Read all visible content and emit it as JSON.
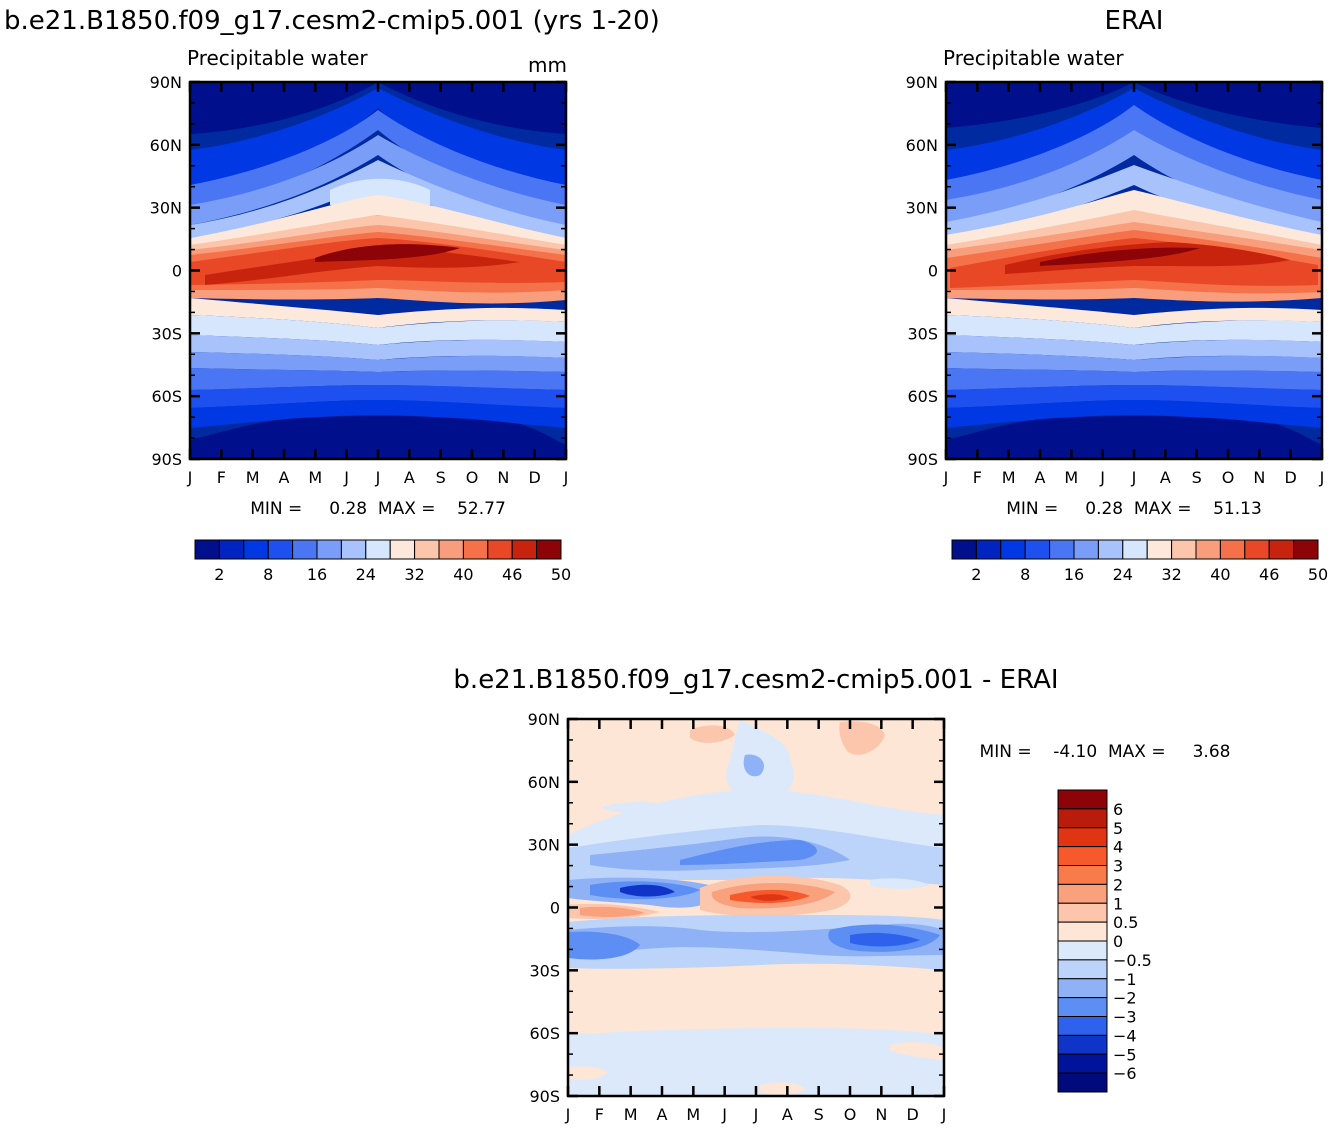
{
  "chart_data": [
    {
      "type": "heatmap",
      "title": "b.e21.B1850.f09_g17.cesm2-cmip5.001 (yrs 1-20)",
      "subtitle_left": "Precipitable water",
      "subtitle_right": "mm",
      "x_ticks": [
        "J",
        "F",
        "M",
        "A",
        "M",
        "J",
        "J",
        "A",
        "S",
        "O",
        "N",
        "D",
        "J"
      ],
      "y_ticks": [
        "90N",
        "60N",
        "30N",
        "0",
        "30S",
        "60S",
        "90S"
      ],
      "stats": "MIN =     0.28  MAX =    52.77",
      "colorbar": {
        "orientation": "horizontal",
        "levels": [
          "2",
          "8",
          "16",
          "24",
          "32",
          "40",
          "46",
          "50"
        ],
        "colors": [
          "#000f8c",
          "#0024c0",
          "#0038e4",
          "#1e50f0",
          "#4a76f4",
          "#7a9ef8",
          "#a8c2fb",
          "#d6e6fd",
          "#fde9dc",
          "#fbc6ac",
          "#f89e7c",
          "#f5714a",
          "#e84826",
          "#c8240d",
          "#8c0407"
        ]
      }
    },
    {
      "type": "heatmap",
      "title": "ERAI",
      "subtitle_left": "Precipitable water",
      "x_ticks": [
        "J",
        "F",
        "M",
        "A",
        "M",
        "J",
        "J",
        "A",
        "S",
        "O",
        "N",
        "D",
        "J"
      ],
      "y_ticks": [
        "90N",
        "60N",
        "30N",
        "0",
        "30S",
        "60S",
        "90S"
      ],
      "stats": "MIN =     0.28  MAX =    51.13",
      "colorbar": {
        "orientation": "horizontal",
        "levels": [
          "2",
          "8",
          "16",
          "24",
          "32",
          "40",
          "46",
          "50"
        ],
        "colors": [
          "#000f8c",
          "#0024c0",
          "#0038e4",
          "#1e50f0",
          "#4a76f4",
          "#7a9ef8",
          "#a8c2fb",
          "#d6e6fd",
          "#fde9dc",
          "#fbc6ac",
          "#f89e7c",
          "#f5714a",
          "#e84826",
          "#c8240d",
          "#8c0407"
        ]
      }
    },
    {
      "type": "heatmap",
      "title": "b.e21.B1850.f09_g17.cesm2-cmip5.001 - ERAI",
      "x_ticks": [
        "J",
        "F",
        "M",
        "A",
        "M",
        "J",
        "J",
        "A",
        "S",
        "O",
        "N",
        "D",
        "J"
      ],
      "y_ticks": [
        "90N",
        "60N",
        "30N",
        "0",
        "30S",
        "60S",
        "90S"
      ],
      "stats": "MIN =    -4.10  MAX =     3.68",
      "colorbar": {
        "orientation": "vertical",
        "levels": [
          "6",
          "5",
          "4",
          "3",
          "2",
          "1",
          "0.5",
          "0",
          "-0.5",
          "-1",
          "-2",
          "-3",
          "-4",
          "-5",
          "-6"
        ],
        "colors": [
          "#8c0407",
          "#b81c0b",
          "#e03515",
          "#f65a2c",
          "#f87b4c",
          "#f9a07c",
          "#fbc6ac",
          "#fde6d6",
          "#dbe9fb",
          "#bcd4f9",
          "#8fb2f6",
          "#5c8ef4",
          "#2f62ec",
          "#1034c8",
          "#00139a",
          "#000a7a"
        ]
      }
    }
  ]
}
